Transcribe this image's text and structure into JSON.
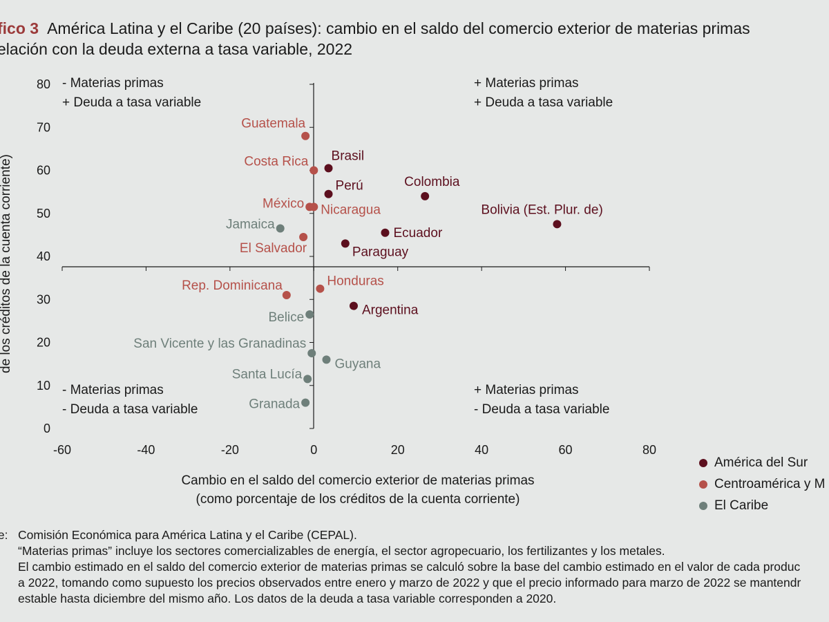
{
  "title": {
    "label": "fico 3",
    "line1": "América Latina y el Caribe (20 países): cambio en el saldo del comercio exterior de materias primas",
    "line2": "elación con la deuda externa a tasa variable, 2022"
  },
  "chart_data": {
    "type": "scatter",
    "xlabel": "Cambio en el saldo del comercio exterior de materias primas",
    "xlabel_sub": "(como porcentaje de los créditos de la cuenta corriente)",
    "ylabel": "de los créditos de la cuenta corriente)",
    "xlim": [
      -60,
      80
    ],
    "ylim": [
      0,
      80
    ],
    "x_ticks": [
      -60,
      -40,
      -20,
      0,
      20,
      40,
      60,
      80
    ],
    "y_ticks": [
      0,
      10,
      20,
      30,
      40,
      50,
      60,
      70,
      80
    ],
    "quadrants": {
      "top_left": [
        "- Materias primas",
        "+ Deuda a tasa variable"
      ],
      "top_right": [
        "+ Materias primas",
        "+ Deuda a tasa variable"
      ],
      "bottom_left": [
        "- Materias primas",
        "- Deuda a tasa variable"
      ],
      "bottom_right": [
        "+ Materias primas",
        "- Deuda a tasa variable"
      ]
    },
    "series": [
      {
        "name": "América del Sur",
        "color": "#5c0f1e",
        "points": [
          {
            "label": "Brasil",
            "x": 3.5,
            "y": 60.5
          },
          {
            "label": "Perú",
            "x": 3.5,
            "y": 54.5
          },
          {
            "label": "Colombia",
            "x": 26.5,
            "y": 54
          },
          {
            "label": "Bolivia (Est. Plur. de)",
            "x": 58,
            "y": 47.5
          },
          {
            "label": "Ecuador",
            "x": 17,
            "y": 45.5
          },
          {
            "label": "Paraguay",
            "x": 7.5,
            "y": 43
          },
          {
            "label": "Argentina",
            "x": 9.5,
            "y": 28.5
          }
        ]
      },
      {
        "name": "Centroamérica y M",
        "color": "#b5514a",
        "points": [
          {
            "label": "Guatemala",
            "x": -2,
            "y": 68
          },
          {
            "label": "Costa Rica",
            "x": 0,
            "y": 60
          },
          {
            "label": "México",
            "x": -1,
            "y": 51.5
          },
          {
            "label": "Nicaragua",
            "x": 0,
            "y": 51.5
          },
          {
            "label": "El Salvador",
            "x": -2.5,
            "y": 44.5
          },
          {
            "label": "Rep. Dominicana",
            "x": -6.5,
            "y": 31
          },
          {
            "label": "Honduras",
            "x": 1.5,
            "y": 32.5
          }
        ]
      },
      {
        "name": "El Caribe",
        "color": "#6e7f7a",
        "points": [
          {
            "label": "Jamaica",
            "x": -8,
            "y": 46.5
          },
          {
            "label": "Belice",
            "x": -1,
            "y": 26.5
          },
          {
            "label": "San Vicente y las Granadinas",
            "x": -0.5,
            "y": 17.5
          },
          {
            "label": "Guyana",
            "x": 3,
            "y": 16
          },
          {
            "label": "Santa Lucía",
            "x": -1.5,
            "y": 11.5
          },
          {
            "label": "Granada",
            "x": -2,
            "y": 6
          }
        ]
      }
    ]
  },
  "notes": [
    {
      "key": "te:",
      "text": "Comisión Económica para América Latina y el Caribe (CEPAL)."
    },
    {
      "key": ":",
      "text": "“Materias primas” incluye los sectores comercializables de energía, el sector agropecuario, los fertilizantes y los metales."
    },
    {
      "key": "",
      "text": "El cambio estimado en el saldo del comercio exterior de materias primas se calculó sobre la base del cambio estimado en el valor de cada produc"
    },
    {
      "key": "",
      "text": "a 2022, tomando como supuesto los precios observados entre enero y marzo de 2022 y que el precio informado para marzo de 2022 se mantendr"
    },
    {
      "key": "",
      "text": "estable hasta diciembre del mismo año. Los datos de la deuda a tasa variable corresponden a 2020."
    }
  ]
}
